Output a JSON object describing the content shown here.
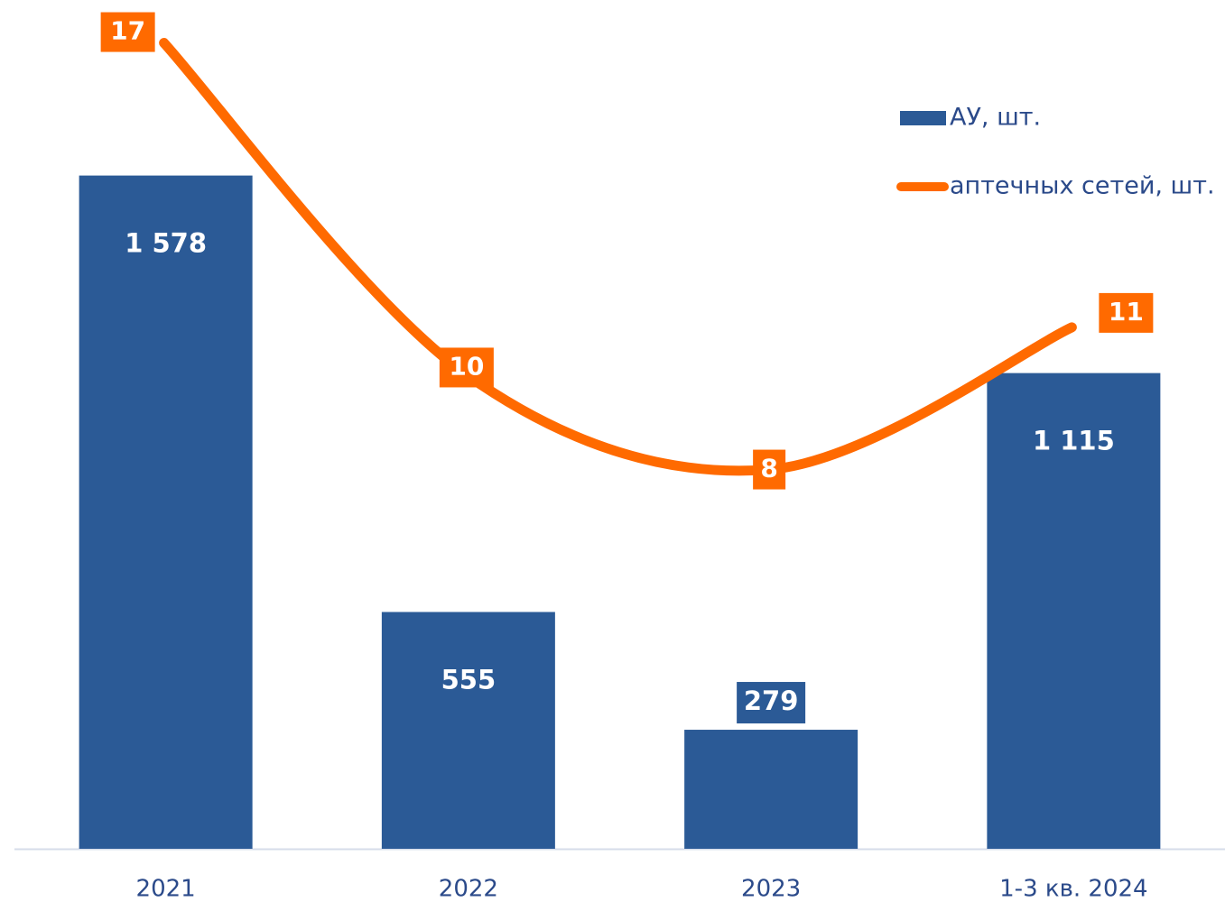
{
  "chart_data": {
    "type": "bar-line",
    "categories": [
      "2021",
      "2022",
      "2023",
      "1-3 кв. 2024"
    ],
    "series": [
      {
        "name": "АУ, шт.",
        "type": "bar",
        "color": "#2b5a96",
        "values": [
          1578,
          555,
          279,
          1115
        ],
        "value_labels": [
          "1 578",
          "555",
          "279",
          "1 115"
        ]
      },
      {
        "name": "аптечных сетей, шт.",
        "type": "line",
        "axis": "y2",
        "color": "#ff6a00",
        "values": [
          17,
          10,
          8,
          11
        ]
      }
    ],
    "ylim": [
      0,
      2000
    ],
    "y2lim": [
      0,
      18
    ],
    "legend": "top-right"
  }
}
